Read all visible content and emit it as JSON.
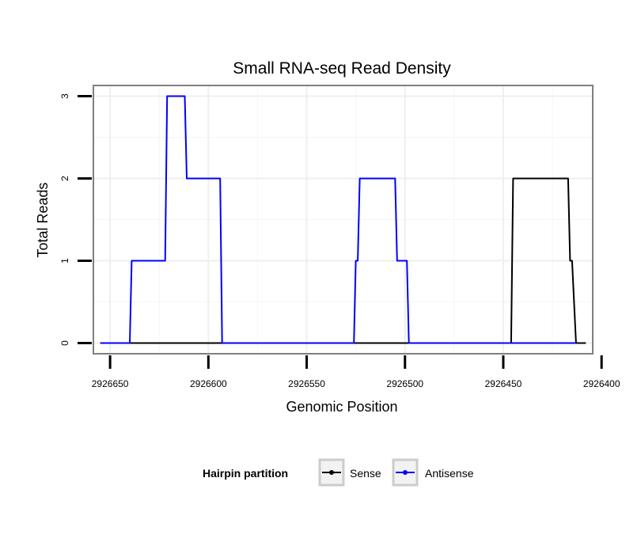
{
  "chart_data": {
    "type": "line",
    "title": "Small RNA-seq Read Density",
    "xlabel": "Genomic Position",
    "ylabel": "Total Reads",
    "xlim": [
      2926658.5,
      2926404.5
    ],
    "ylim": [
      -0.13,
      3.13
    ],
    "x_reversed": true,
    "x_ticks": [
      2926650,
      2926600,
      2926550,
      2926500,
      2926450,
      2926400
    ],
    "x_tick_labels": [
      "2926650",
      "2926600",
      "2926550",
      "2926500",
      "2926450",
      "2926400"
    ],
    "y_ticks": [
      0,
      1,
      2,
      3
    ],
    "y_tick_labels": [
      "0",
      "1",
      "2",
      "3"
    ],
    "grid": true,
    "legend": {
      "title": "Hairpin partition",
      "position": "bottom",
      "entries": [
        "Sense",
        "Antisense"
      ]
    },
    "series": [
      {
        "name": "Sense",
        "color": "#000000",
        "x": [
          2926655,
          2926463,
          2926462,
          2926459,
          2926458,
          2926455,
          2926454,
          2926450,
          2926449,
          2926446,
          2926445,
          2926442,
          2926441,
          2926435,
          2926434,
          2926433,
          2926432,
          2926430,
          2926429,
          2926428,
          2926427,
          2926418,
          2926417,
          2926416,
          2926415,
          2926413,
          2926412,
          2926408
        ],
        "values": [
          0,
          0,
          0,
          0,
          0,
          0,
          0,
          0,
          0,
          0,
          2,
          2,
          2,
          2,
          2,
          2,
          2,
          2,
          2,
          2,
          2,
          2,
          2,
          1,
          1,
          0,
          0,
          0
        ]
      },
      {
        "name": "Antisense",
        "color": "#0000ff",
        "x": [
          2926655,
          2926640,
          2926639,
          2926631,
          2926630,
          2926622,
          2926621,
          2926612,
          2926611,
          2926604,
          2926603,
          2926594,
          2926593,
          2926526,
          2926525,
          2926524,
          2926523,
          2926505,
          2926504,
          2926502,
          2926501,
          2926499,
          2926498,
          2926445,
          2926444,
          2926418,
          2926417,
          2926413
        ],
        "values": [
          0,
          0,
          1,
          1,
          1,
          1,
          3,
          3,
          2,
          2,
          2,
          2,
          0,
          0,
          1,
          1,
          2,
          2,
          1,
          1,
          1,
          1,
          0,
          0,
          0,
          0,
          0,
          0
        ]
      }
    ]
  }
}
